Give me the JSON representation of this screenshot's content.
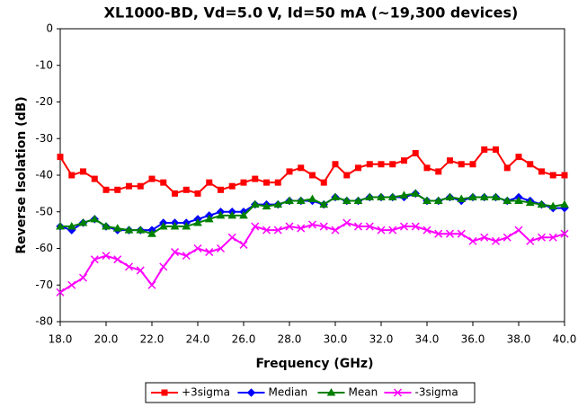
{
  "chart_data": {
    "type": "line",
    "title": "XL1000-BD, Vd=5.0 V, Id=50 mA (~19,300 devices)",
    "xlabel": "Frequency (GHz)",
    "ylabel": "Reverse Isolation (dB)",
    "x": [
      18,
      18.5,
      19,
      19.5,
      20,
      20.5,
      21,
      21.5,
      22,
      22.5,
      23,
      23.5,
      24,
      24.5,
      25,
      25.5,
      26,
      26.5,
      27,
      27.5,
      28,
      28.5,
      29,
      29.5,
      30,
      30.5,
      31,
      31.5,
      32,
      32.5,
      33,
      33.5,
      34,
      34.5,
      35,
      35.5,
      36,
      36.5,
      37,
      37.5,
      38,
      38.5,
      39,
      39.5,
      40
    ],
    "series": [
      {
        "name": "+3sigma",
        "color": "#ff0000",
        "marker": "square",
        "values": [
          -35,
          -40,
          -39,
          -41,
          -44,
          -44,
          -43,
          -43,
          -41,
          -42,
          -45,
          -44,
          -45,
          -42,
          -44,
          -43,
          -42,
          -41,
          -42,
          -42,
          -39,
          -38,
          -40,
          -42,
          -37,
          -40,
          -38,
          -37,
          -37,
          -37,
          -36,
          -34,
          -38,
          -39,
          -36,
          -37,
          -37,
          -33,
          -33,
          -38,
          -35,
          -37,
          -39,
          -40,
          -40
        ]
      },
      {
        "name": "Median",
        "color": "#0000ff",
        "marker": "diamond",
        "values": [
          -54,
          -55,
          -53,
          -52,
          -54,
          -55,
          -55,
          -55,
          -55,
          -53,
          -53,
          -53,
          -52,
          -51,
          -50,
          -50,
          -50,
          -48,
          -48,
          -48,
          -47,
          -47,
          -47,
          -48,
          -46,
          -47,
          -47,
          -46,
          -46,
          -46,
          -46,
          -45,
          -47,
          -47,
          -46,
          -47,
          -46,
          -46,
          -46,
          -47,
          -46,
          -47,
          -48,
          -49,
          -49
        ]
      },
      {
        "name": "Mean",
        "color": "#008000",
        "marker": "triangle",
        "values": [
          -54,
          -54,
          -53,
          -52,
          -54,
          -54.5,
          -55,
          -55,
          -56,
          -54,
          -54,
          -54,
          -53,
          -52,
          -51,
          -51,
          -51,
          -48,
          -48.5,
          -48,
          -47,
          -47,
          -46.5,
          -48,
          -46,
          -47,
          -47,
          -46,
          -46,
          -46,
          -45.5,
          -45,
          -47,
          -47,
          -46,
          -46.5,
          -46,
          -46,
          -46,
          -47,
          -47,
          -47.5,
          -48,
          -48.5,
          -48
        ]
      },
      {
        "name": "-3sigma",
        "color": "#ff00ff",
        "marker": "x",
        "values": [
          -72,
          -70,
          -68,
          -63,
          -62,
          -63,
          -65,
          -66,
          -70,
          -65,
          -61,
          -62,
          -60,
          -61,
          -60,
          -57,
          -59,
          -54,
          -55,
          -55,
          -54,
          -54.5,
          -53.5,
          -54,
          -55,
          -53,
          -54,
          -54,
          -55,
          -55,
          -54,
          -54,
          -55,
          -56,
          -56,
          -56,
          -58,
          -57,
          -58,
          -57,
          -55,
          -58,
          -57,
          -57,
          -56
        ]
      }
    ],
    "xlim": [
      18,
      40
    ],
    "xticks": [
      {
        "value": 18,
        "label": "18.0"
      },
      {
        "value": 20,
        "label": "20.0"
      },
      {
        "value": 22,
        "label": "22.0"
      },
      {
        "value": 24,
        "label": "24.0"
      },
      {
        "value": 26,
        "label": "26.0"
      },
      {
        "value": 28,
        "label": "28.0"
      },
      {
        "value": 30,
        "label": "30.0"
      },
      {
        "value": 32,
        "label": "32.0"
      },
      {
        "value": 34,
        "label": "34.0"
      },
      {
        "value": 36,
        "label": "36.0"
      },
      {
        "value": 38,
        "label": "38.0"
      },
      {
        "value": 40,
        "label": "40.0"
      }
    ],
    "ylim": [
      -80,
      0
    ],
    "yticks": [
      0,
      -10,
      -20,
      -30,
      -40,
      -50,
      -60,
      -70,
      -80
    ],
    "grid": false,
    "legend": "bottom"
  }
}
